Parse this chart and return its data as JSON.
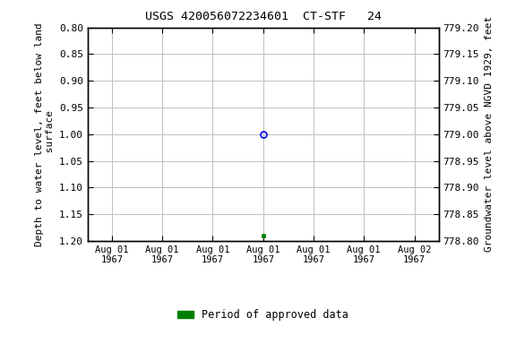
{
  "title": "USGS 420056072234601  CT-STF   24",
  "ylabel_left": "Depth to water level, feet below land\n surface",
  "ylabel_right": "Groundwater level above NGVD 1929, feet",
  "ylim_left": [
    0.8,
    1.2
  ],
  "ylim_right": [
    778.8,
    779.2
  ],
  "yticks_left": [
    0.8,
    0.85,
    0.9,
    0.95,
    1.0,
    1.05,
    1.1,
    1.15,
    1.2
  ],
  "yticks_right": [
    778.8,
    778.85,
    778.9,
    778.95,
    779.0,
    779.05,
    779.1,
    779.15,
    779.2
  ],
  "x_data": [
    0.5
  ],
  "y_data": [
    1.0
  ],
  "x_data2": [
    0.5
  ],
  "y_data2": [
    1.19
  ],
  "marker_color": "blue",
  "marker2_color": "#008000",
  "legend_label": "Period of approved data",
  "legend_color": "#008000",
  "xtick_labels": [
    "Aug 01\n1967",
    "Aug 01\n1967",
    "Aug 01\n1967",
    "Aug 01\n1967",
    "Aug 01\n1967",
    "Aug 01\n1967",
    "Aug 02\n1967"
  ],
  "xtick_positions": [
    0.0,
    0.166,
    0.333,
    0.5,
    0.666,
    0.833,
    1.0
  ],
  "bg_color": "#ffffff",
  "grid_color": "#c0c0c0"
}
